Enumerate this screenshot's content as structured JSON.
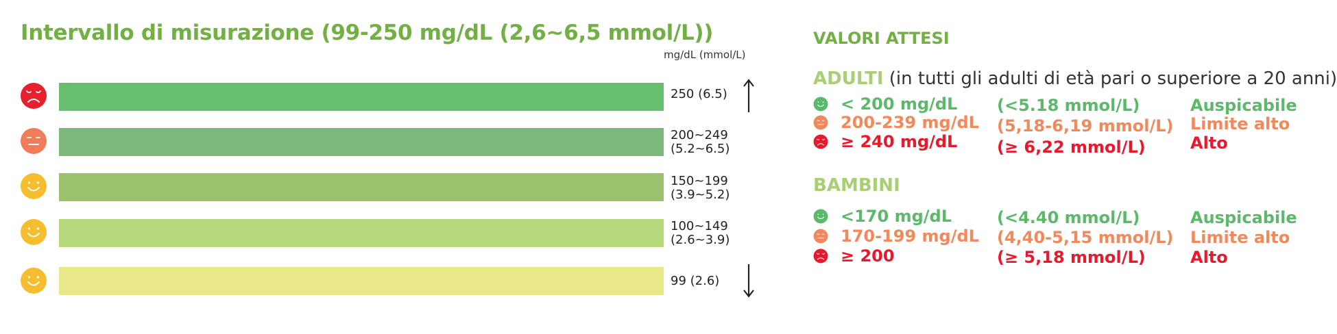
{
  "left_panel": {
    "title": "Intervallo di misurazione (99-250 mg/dL (2,6~6,5 mmol/L))",
    "unit_label": "mg/dL (mmol/L)",
    "bars": [
      {
        "line1": "250 (6.5)",
        "line2": "",
        "color": "#66bf6e",
        "face": "sad",
        "face_color": "#e8202e"
      },
      {
        "line1": "200~249",
        "line2": "(5.2~6.5)",
        "color": "#7cb87a",
        "face": "neutral",
        "face_color": "#f07d5a"
      },
      {
        "line1": "150~199",
        "line2": "(3.9~5.2)",
        "color": "#9ac16e",
        "face": "happy",
        "face_color": "#f6bd2e"
      },
      {
        "line1": "100~149",
        "line2": "(2.6~3.9)",
        "color": "#b5d97a",
        "face": "happy",
        "face_color": "#f6bd2e"
      },
      {
        "line1": "99 (2.6)",
        "line2": "",
        "color": "#e8e888",
        "face": "happy",
        "face_color": "#f6bd2e"
      }
    ],
    "arrow_up": "up-arrow",
    "arrow_down": "down-arrow"
  },
  "right_panel": {
    "title": "VALORI ATTESI",
    "adults": {
      "name": "ADULTI",
      "note": " (in tutti gli adulti di età pari o superiore a 20 anni)",
      "rows": [
        {
          "face": "happy",
          "face_color": "#5aba6a",
          "mgdl": "< 200 mg/dL",
          "mmol": "(<5.18 mmol/L)",
          "status": "Auspicabile",
          "tone": "g"
        },
        {
          "face": "neutral",
          "face_color": "#f08a5c",
          "mgdl": "200-239 mg/dL",
          "mmol": "(5,18-6,19 mmol/L)",
          "status": "Limite alto",
          "tone": "o"
        },
        {
          "face": "sad",
          "face_color": "#e8192c",
          "mgdl": "≥ 240 mg/dL",
          "mmol": "(≥ 6,22 mmol/L)",
          "status": "Alto",
          "tone": "r"
        }
      ]
    },
    "children": {
      "name": "BAMBINI",
      "rows": [
        {
          "face": "happy",
          "face_color": "#5aba6a",
          "mgdl": "<170 mg/dL",
          "mmol": "(<4.40 mmol/L)",
          "status": "Auspicabile",
          "tone": "g"
        },
        {
          "face": "neutral",
          "face_color": "#f08a5c",
          "mgdl": "170-199 mg/dL",
          "mmol": "(4,40-5,15 mmol/L)",
          "status": "Limite alto",
          "tone": "o"
        },
        {
          "face": "sad",
          "face_color": "#e8192c",
          "mgdl": "≥ 200",
          "mmol": "(≥ 5,18 mmol/L)",
          "status": "Alto",
          "tone": "r"
        }
      ]
    }
  }
}
